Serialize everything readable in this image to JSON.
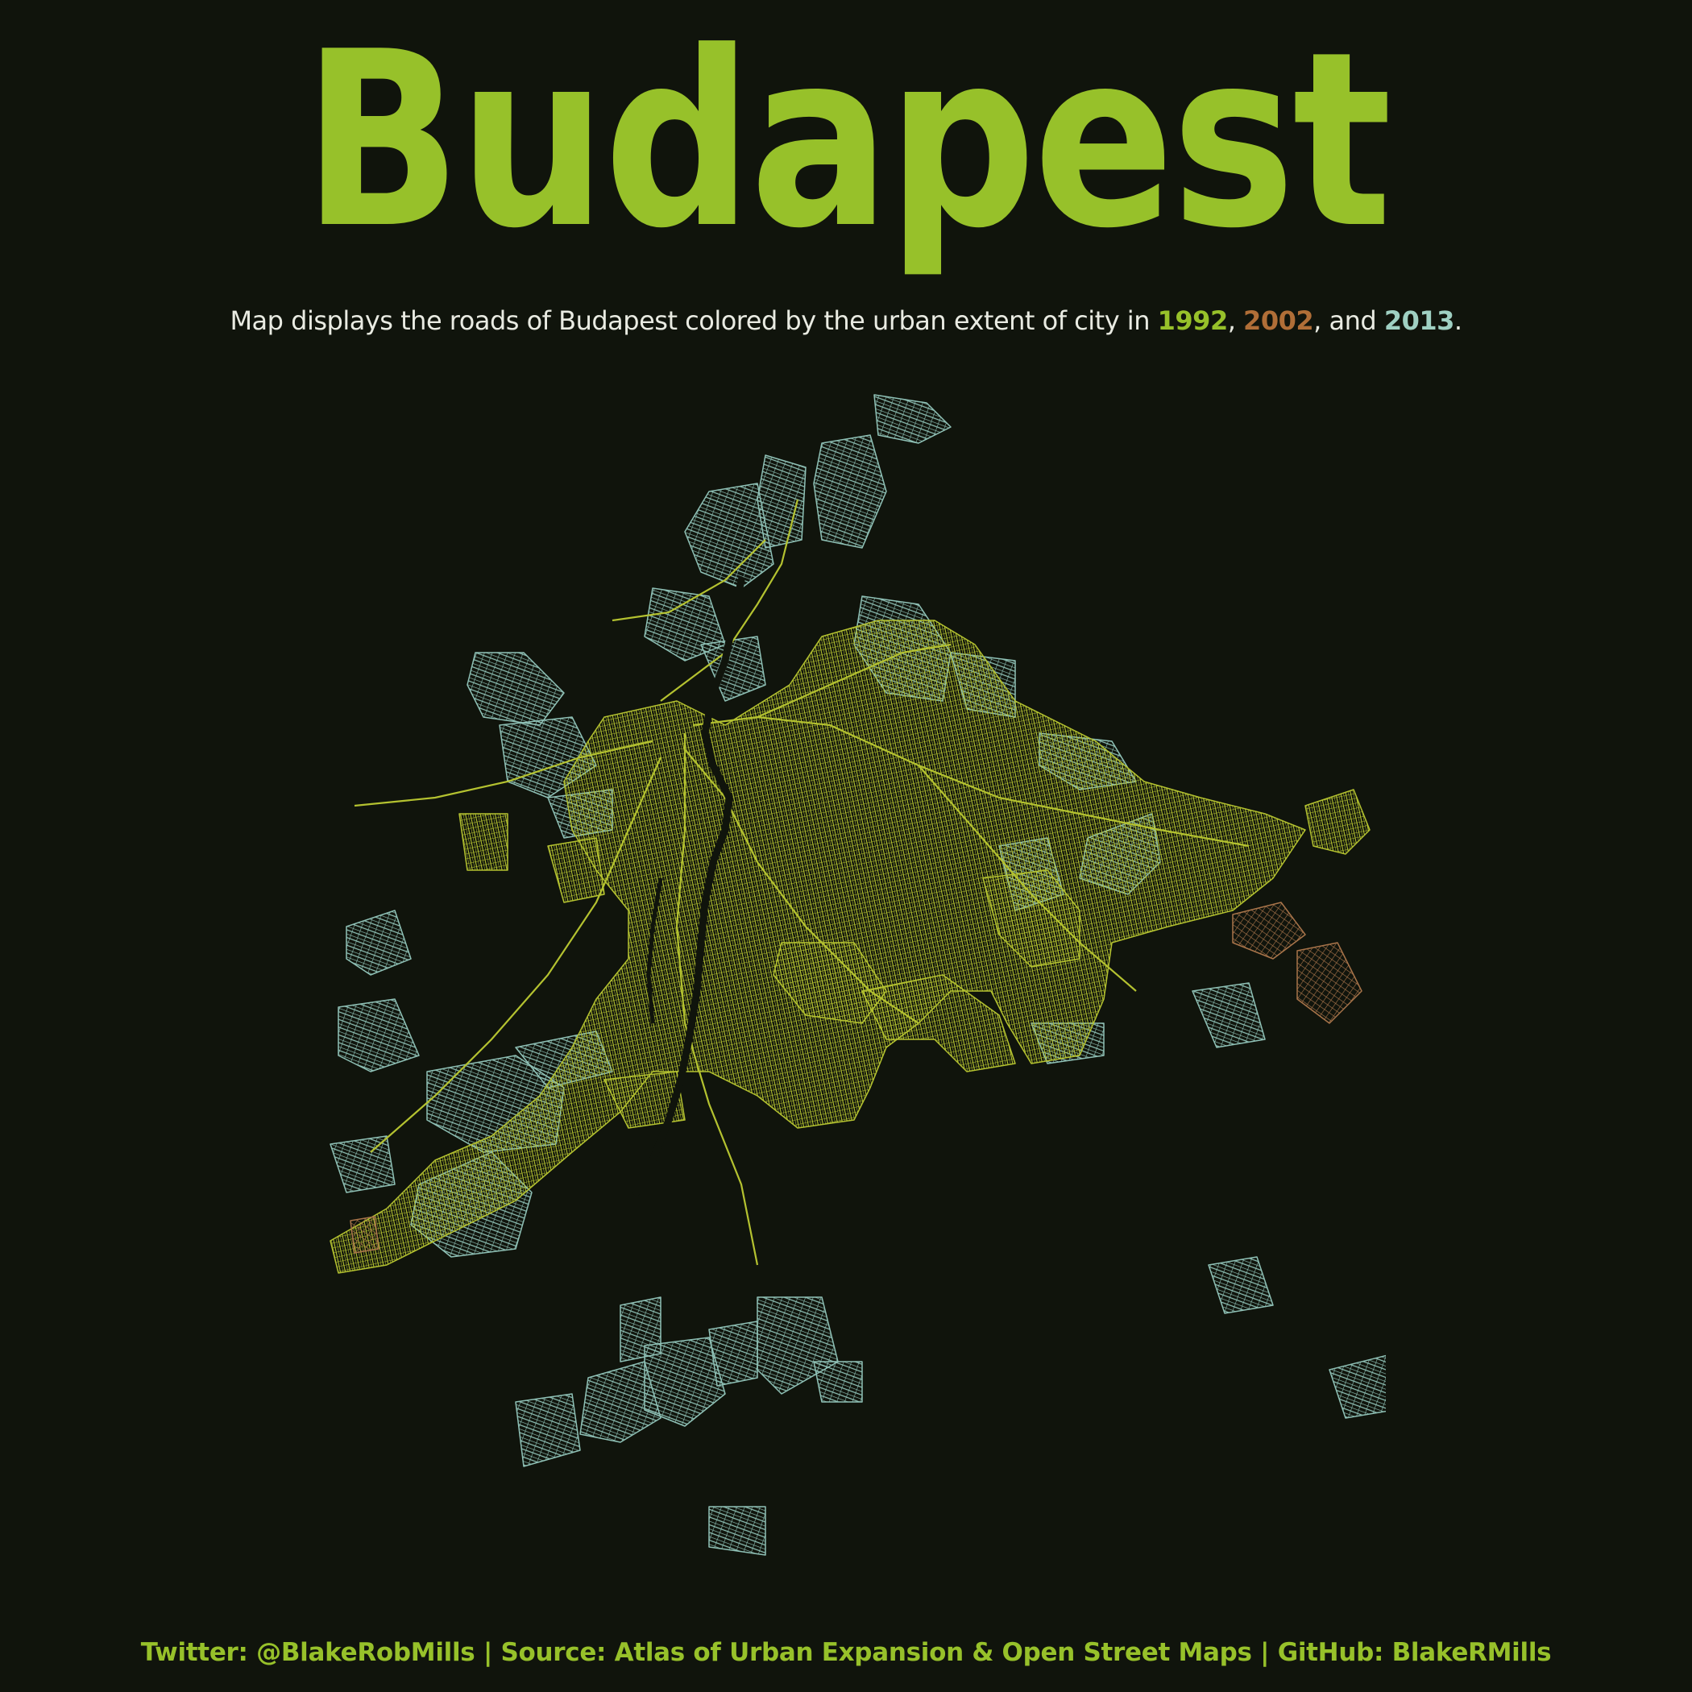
{
  "title": "Budapest",
  "subtitle": {
    "prefix": "Map displays the roads of Budapest colored by the urban extent of city in ",
    "year_1": "1992",
    "sep_1": ", ",
    "year_2": "2002",
    "sep_2": ", and ",
    "year_3": "2013",
    "suffix": "."
  },
  "footer": "Twitter: @BlakeRobMills | Source: Atlas of Urban Expansion & Open Street Maps | GitHub: BlakeRMills",
  "colors": {
    "background": "#10140c",
    "title": "#97c12a",
    "year_1992": "#97c12a",
    "year_2002": "#b06e37",
    "year_2013": "#9fd0c2",
    "roads_1992": "#b4c230",
    "roads_2002": "#a8744a",
    "roads_2013": "#8fc1b6",
    "river": "#10140c",
    "footer": "#97c12a",
    "subtitle_text": "#e9ebe2"
  },
  "map": {
    "city": "Budapest",
    "river": "Danube",
    "legend_years": [
      "1992",
      "2002",
      "2013"
    ]
  }
}
